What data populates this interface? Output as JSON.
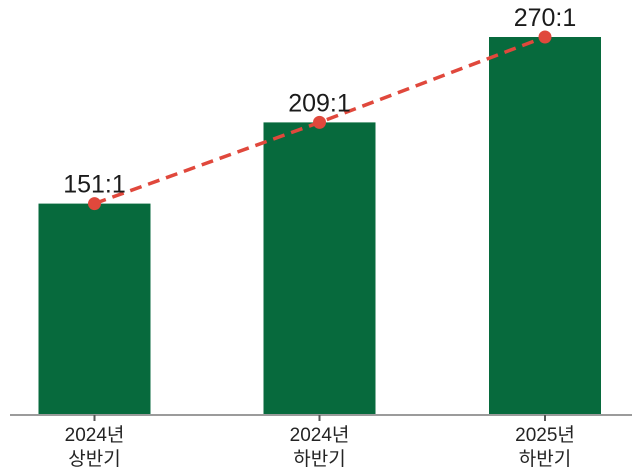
{
  "chart_data": {
    "type": "bar",
    "title": "",
    "xlabel": "",
    "ylabel": "",
    "categories": [
      {
        "line1": "2024년",
        "line2": "상반기"
      },
      {
        "line1": "2024년",
        "line2": "하반기"
      },
      {
        "line1": "2025년",
        "line2": "하반기"
      }
    ],
    "values": [
      151,
      209,
      270
    ],
    "value_labels": [
      "151:1",
      "209:1",
      "270:1"
    ],
    "overlay_line": {
      "type": "line",
      "style": "dashed",
      "markers": "dot",
      "follows_bar_tops": true
    },
    "ylim": [
      0,
      296
    ],
    "grid": false,
    "legend": false,
    "colors": {
      "bar": "#076a3d",
      "line": "#e0483c",
      "marker": "#e0483c",
      "axis": "#9b9b9b",
      "tick": "#555555",
      "value_label": "#1b1b1b",
      "category_label": "#242424",
      "background": "#ffffff"
    }
  }
}
